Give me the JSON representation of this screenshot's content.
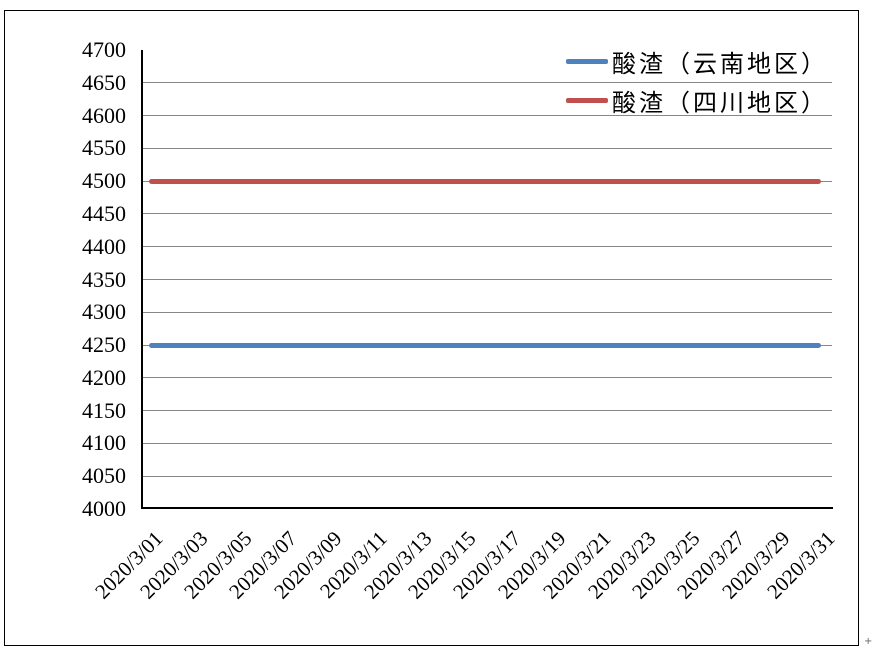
{
  "chart_data": {
    "type": "line",
    "title": "",
    "xlabel": "",
    "ylabel": "",
    "x_tick_labels": [
      "2020/3/01",
      "2020/3/03",
      "2020/3/05",
      "2020/3/07",
      "2020/3/09",
      "2020/3/11",
      "2020/3/13",
      "2020/3/15",
      "2020/3/17",
      "2020/3/19",
      "2020/3/21",
      "2020/3/23",
      "2020/3/25",
      "2020/3/27",
      "2020/3/29",
      "2020/3/31"
    ],
    "yticks": [
      4000,
      4050,
      4100,
      4150,
      4200,
      4250,
      4300,
      4350,
      4400,
      4450,
      4500,
      4550,
      4600,
      4650,
      4700
    ],
    "ylim": [
      4000,
      4700
    ],
    "grid": true,
    "legend_position": "top-right",
    "series": [
      {
        "name": "酸渣（云南地区）",
        "color": "#4F81BD",
        "values": [
          4250,
          4250,
          4250,
          4250,
          4250,
          4250,
          4250,
          4250,
          4250,
          4250,
          4250,
          4250,
          4250,
          4250,
          4250,
          4250
        ]
      },
      {
        "name": "酸渣（四川地区）",
        "color": "#C0504D",
        "values": [
          4500,
          4500,
          4500,
          4500,
          4500,
          4500,
          4500,
          4500,
          4500,
          4500,
          4500,
          4500,
          4500,
          4500,
          4500,
          4500
        ]
      }
    ]
  },
  "colors": {
    "background": "#FFFFFF",
    "border": "#000000",
    "axis": "#000000",
    "gridline": "#878787",
    "series_yunnan": "#4F81BD",
    "series_sichuan": "#C0504D"
  },
  "decorations": {
    "corner_mark": "+"
  }
}
